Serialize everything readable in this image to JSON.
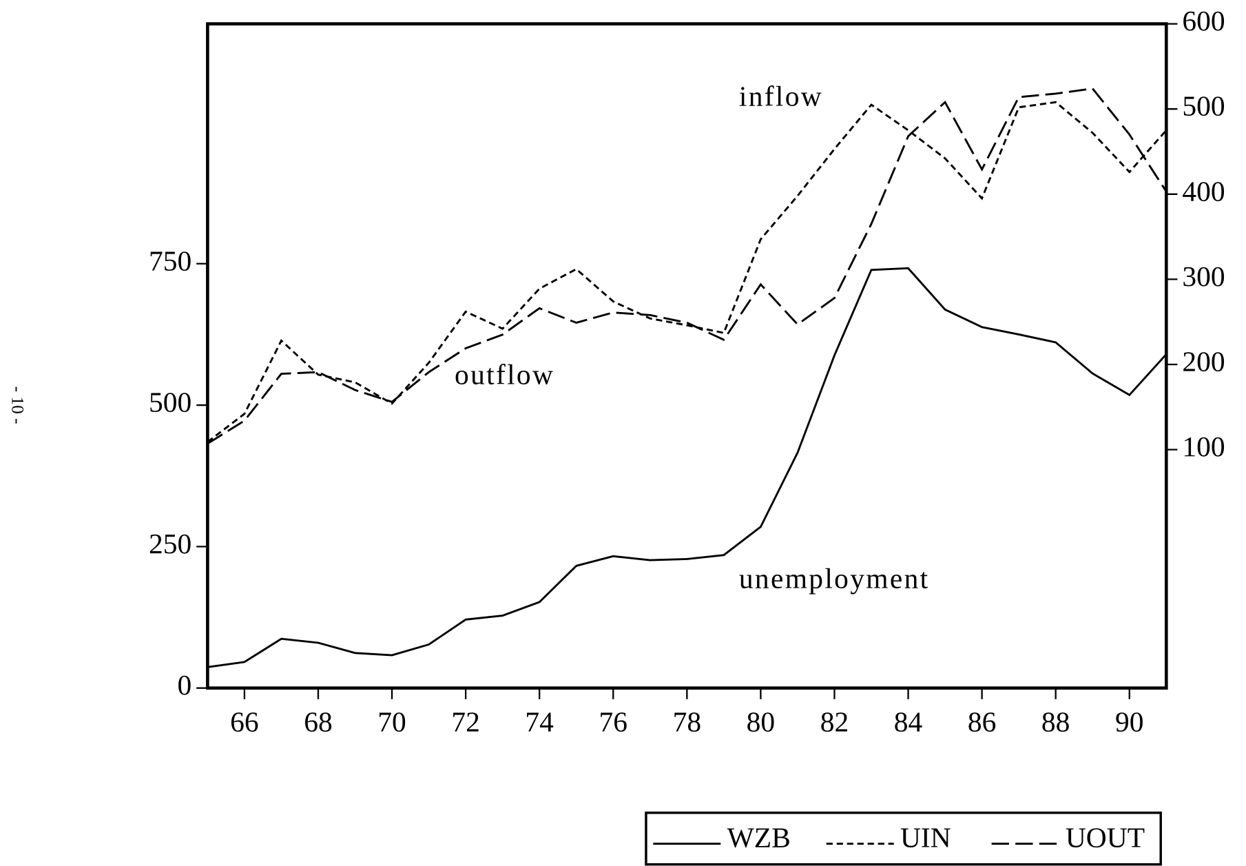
{
  "page_label": "- 10 -",
  "chart_data": {
    "type": "line",
    "x": [
      65,
      66,
      67,
      68,
      69,
      70,
      71,
      72,
      73,
      74,
      75,
      76,
      77,
      78,
      79,
      80,
      81,
      82,
      83,
      84,
      85,
      86,
      87,
      88,
      89,
      90,
      91
    ],
    "xlim": [
      65,
      91
    ],
    "xticks": [
      66,
      68,
      70,
      72,
      74,
      76,
      78,
      80,
      82,
      84,
      86,
      88,
      90
    ],
    "ylim": [
      0,
      1174
    ],
    "yticks": [
      0,
      250,
      500,
      750
    ],
    "y2lim": [
      -180,
      600
    ],
    "y2ticks": [
      100,
      200,
      300,
      400,
      500,
      600
    ],
    "annotations": [
      "inflow",
      "outflow",
      "unemployment"
    ],
    "series": [
      {
        "name": "WZB",
        "color": "#000000",
        "dash": "none",
        "values": [
          37,
          46,
          87,
          80,
          62,
          58,
          77,
          121,
          128,
          152,
          216,
          233,
          226,
          228,
          235,
          285,
          416,
          588,
          739,
          742,
          669,
          638,
          625,
          611,
          556,
          518,
          590
        ]
      },
      {
        "name": "UIN",
        "color": "#000000",
        "dash": "8,5",
        "axis": "y2",
        "values": [
          109,
          142,
          228,
          188,
          179,
          154,
          202,
          262,
          242,
          289,
          312,
          274,
          254,
          246,
          237,
          347,
          398,
          453,
          505,
          475,
          442,
          395,
          502,
          508,
          472,
          426,
          475
        ]
      },
      {
        "name": "UOUT",
        "color": "#000000",
        "dash": "22,8",
        "axis": "y2",
        "values": [
          107,
          134,
          189,
          191,
          170,
          156,
          191,
          219,
          235,
          266,
          249,
          261,
          258,
          249,
          229,
          294,
          247,
          278,
          365,
          468,
          508,
          429,
          514,
          518,
          524,
          470,
          403
        ]
      }
    ]
  }
}
